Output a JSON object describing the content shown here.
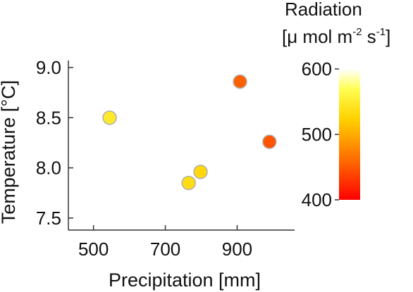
{
  "chart_data": {
    "type": "scatter",
    "xlabel": "Precipitation [mm]",
    "ylabel": "Temperature [°C]",
    "xlim": [
      430,
      1060
    ],
    "ylim": [
      7.38,
      9.07
    ],
    "x_ticks": [
      500,
      700,
      900
    ],
    "y_ticks": [
      7.5,
      8.0,
      8.5,
      9.0
    ],
    "x_tick_labels": [
      "500",
      "700",
      "900"
    ],
    "y_tick_labels": [
      "7.5",
      "8.0",
      "8.5",
      "9.0"
    ],
    "grid": false,
    "colorbar": {
      "title_line1": "Radiation",
      "title_line2_base": "[μ mol m",
      "title_line2_exp1": "-2",
      "title_line2_mid": " s",
      "title_line2_exp2": "-1",
      "title_line2_end": "]",
      "min": 400,
      "max": 600,
      "ticks": [
        400,
        500,
        600
      ],
      "tick_labels": [
        "400",
        "500",
        "600"
      ],
      "colors": [
        "#ff0000",
        "#ff6a00",
        "#ffd200",
        "#ffff55",
        "#ffffff"
      ]
    },
    "points": [
      {
        "x": 545,
        "y": 8.5,
        "c": 548
      },
      {
        "x": 765,
        "y": 7.85,
        "c": 535
      },
      {
        "x": 798,
        "y": 7.96,
        "c": 530
      },
      {
        "x": 908,
        "y": 8.86,
        "c": 455
      },
      {
        "x": 990,
        "y": 8.26,
        "c": 448
      }
    ]
  }
}
